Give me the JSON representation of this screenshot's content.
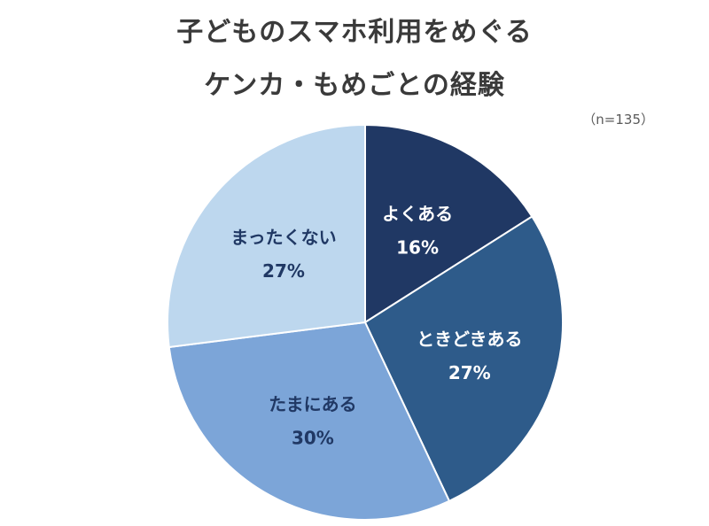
{
  "title_line1": "子どものスマホ利用をめぐる",
  "title_line2": "ケンカ・もめごとの経験",
  "sample_size": "（n=135）",
  "chart_data": {
    "type": "pie",
    "title": "子どものスマホ利用をめぐるケンカ・もめごとの経験",
    "categories": [
      "よくある",
      "ときどきある",
      "たまにある",
      "まったくない"
    ],
    "values": [
      16,
      27,
      30,
      27
    ],
    "value_labels": [
      "16%",
      "27%",
      "30%",
      "27%"
    ],
    "colors": [
      "#203864",
      "#2e5b8a",
      "#7ca5d8",
      "#bdd7ee"
    ],
    "label_colors": [
      "#ffffff",
      "#ffffff",
      "#203864",
      "#203864"
    ],
    "start": "12 o'clock",
    "direction": "clockwise"
  }
}
